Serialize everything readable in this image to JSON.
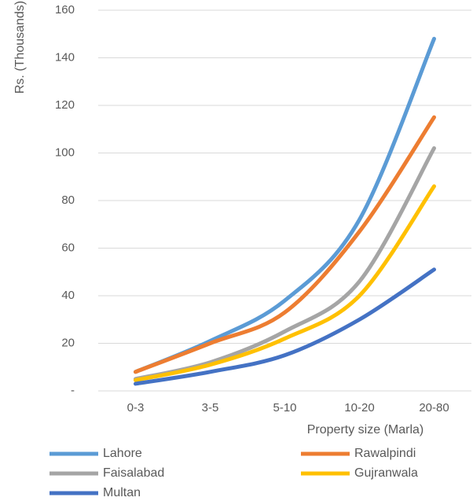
{
  "chart_data": {
    "type": "line",
    "title": "",
    "xlabel": "Property size (Marla)",
    "ylabel": "Rs. (Thousands)",
    "categories": [
      "0-3",
      "3-5",
      "5-10",
      "10-20",
      "20-80"
    ],
    "ylim": [
      0,
      160
    ],
    "yticks": [
      0,
      20,
      40,
      60,
      80,
      100,
      120,
      140,
      160
    ],
    "ytick_labels": [
      "-",
      "20",
      "40",
      "60",
      "80",
      "100",
      "120",
      "140",
      "160"
    ],
    "grid": true,
    "legend_position": "bottom",
    "series": [
      {
        "name": "Lahore",
        "color": "#5B9BD5",
        "values": [
          8,
          21,
          38,
          72,
          148
        ]
      },
      {
        "name": "Rawalpindi",
        "color": "#ED7D31",
        "values": [
          8,
          20,
          33,
          67,
          115
        ]
      },
      {
        "name": "Faisalabad",
        "color": "#A5A5A5",
        "values": [
          5,
          12,
          25,
          46,
          102
        ]
      },
      {
        "name": "Gujranwala",
        "color": "#FFC000",
        "values": [
          4.5,
          11,
          22,
          40,
          86
        ]
      },
      {
        "name": "Multan",
        "color": "#4472C4",
        "values": [
          3,
          8,
          15,
          30,
          51
        ]
      }
    ]
  }
}
